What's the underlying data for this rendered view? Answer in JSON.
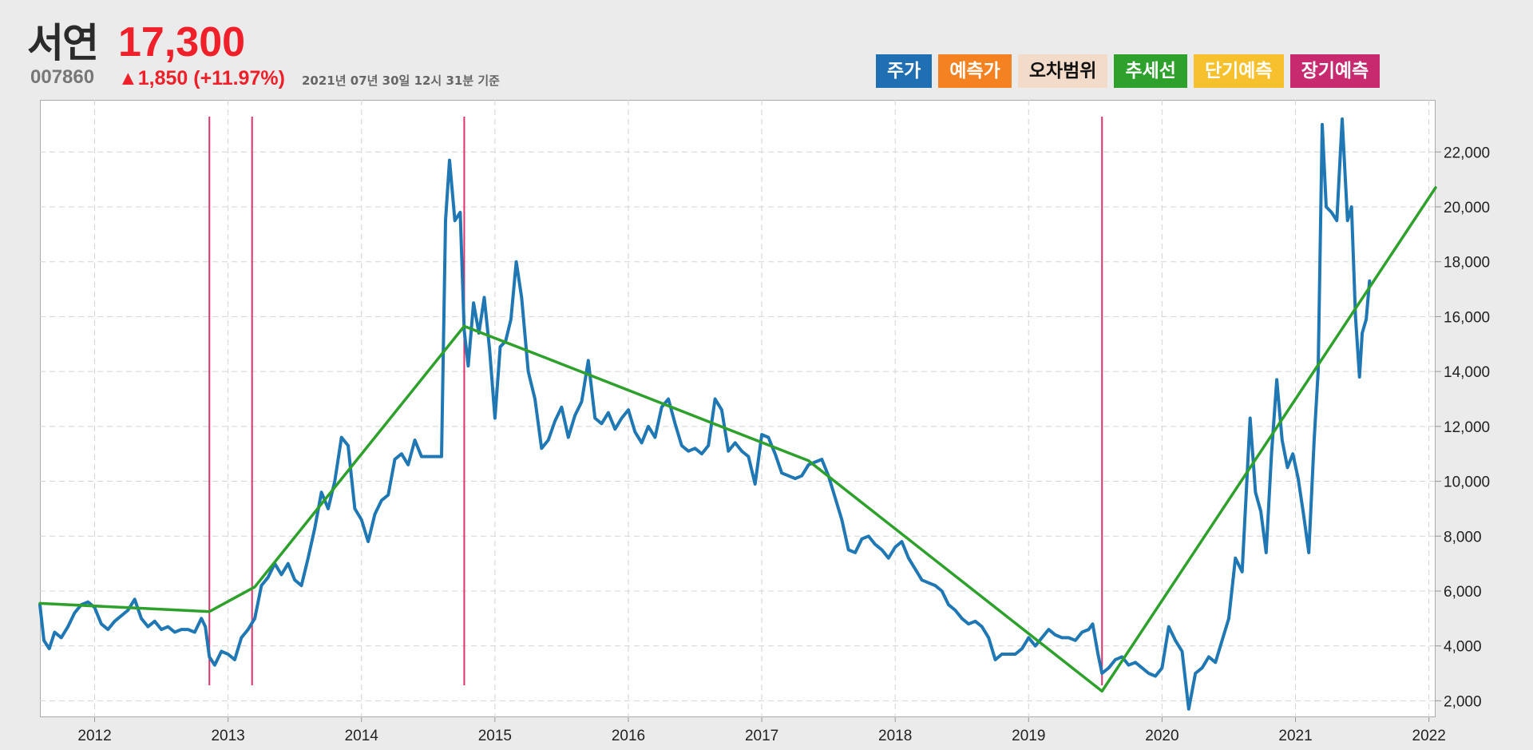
{
  "header": {
    "name": "서연",
    "price": "17,300",
    "code": "007860",
    "change": "▲1,850 (+11.97%)",
    "timestamp": "2021년 07년 30일 12시 31분 기준"
  },
  "legend": [
    {
      "label": "주가",
      "color": "#1f6fb2",
      "text_color": "#ffffff"
    },
    {
      "label": "예측가",
      "color": "#f58220",
      "text_color": "#ffffff"
    },
    {
      "label": "오차범위",
      "color": "#f2dcc9",
      "text_color": "#111111"
    },
    {
      "label": "추세선",
      "color": "#2ea02c",
      "text_color": "#ffffff"
    },
    {
      "label": "단기예측",
      "color": "#f6c12c",
      "text_color": "#ffffff"
    },
    {
      "label": "장기예측",
      "color": "#c72a6f",
      "text_color": "#ffffff"
    }
  ],
  "chart_data": {
    "type": "line",
    "x_axis": {
      "range": [
        2011.59,
        2022.05
      ],
      "ticks": [
        "2012",
        "2013",
        "2014",
        "2015",
        "2016",
        "2017",
        "2018",
        "2019",
        "2020",
        "2021",
        "2022"
      ],
      "tick_values": [
        2012,
        2013,
        2014,
        2015,
        2016,
        2017,
        2018,
        2019,
        2020,
        2021,
        2022
      ]
    },
    "y_axis": {
      "range": [
        1400,
        23900
      ],
      "position": "right",
      "ticks": [
        "2,000",
        "4,000",
        "6,000",
        "8,000",
        "10,000",
        "12,000",
        "14,000",
        "16,000",
        "18,000",
        "20,000",
        "22,000"
      ],
      "tick_values": [
        2000,
        4000,
        6000,
        8000,
        10000,
        12000,
        14000,
        16000,
        18000,
        20000,
        22000
      ]
    },
    "grid": true,
    "series": [
      {
        "color": "#1f77b4",
        "points": [
          [
            2011.59,
            5500
          ],
          [
            2011.62,
            4200
          ],
          [
            2011.66,
            3900
          ],
          [
            2011.7,
            4500
          ],
          [
            2011.75,
            4300
          ],
          [
            2011.8,
            4700
          ],
          [
            2011.85,
            5200
          ],
          [
            2011.9,
            5500
          ],
          [
            2011.95,
            5600
          ],
          [
            2012.0,
            5400
          ],
          [
            2012.05,
            4800
          ],
          [
            2012.1,
            4600
          ],
          [
            2012.15,
            4900
          ],
          [
            2012.2,
            5100
          ],
          [
            2012.25,
            5300
          ],
          [
            2012.3,
            5700
          ],
          [
            2012.35,
            5000
          ],
          [
            2012.4,
            4700
          ],
          [
            2012.45,
            4900
          ],
          [
            2012.5,
            4600
          ],
          [
            2012.55,
            4700
          ],
          [
            2012.6,
            4500
          ],
          [
            2012.65,
            4600
          ],
          [
            2012.7,
            4600
          ],
          [
            2012.75,
            4500
          ],
          [
            2012.8,
            5000
          ],
          [
            2012.83,
            4700
          ],
          [
            2012.86,
            3600
          ],
          [
            2012.9,
            3300
          ],
          [
            2012.95,
            3800
          ],
          [
            2013.0,
            3700
          ],
          [
            2013.05,
            3500
          ],
          [
            2013.1,
            4300
          ],
          [
            2013.15,
            4600
          ],
          [
            2013.2,
            5000
          ],
          [
            2013.25,
            6200
          ],
          [
            2013.3,
            6500
          ],
          [
            2013.35,
            7000
          ],
          [
            2013.4,
            6600
          ],
          [
            2013.45,
            7000
          ],
          [
            2013.5,
            6400
          ],
          [
            2013.55,
            6200
          ],
          [
            2013.6,
            7200
          ],
          [
            2013.65,
            8300
          ],
          [
            2013.7,
            9600
          ],
          [
            2013.75,
            9000
          ],
          [
            2013.8,
            10000
          ],
          [
            2013.85,
            11600
          ],
          [
            2013.9,
            11300
          ],
          [
            2013.95,
            9000
          ],
          [
            2014.0,
            8600
          ],
          [
            2014.05,
            7800
          ],
          [
            2014.1,
            8800
          ],
          [
            2014.15,
            9300
          ],
          [
            2014.2,
            9500
          ],
          [
            2014.25,
            10800
          ],
          [
            2014.3,
            11000
          ],
          [
            2014.35,
            10600
          ],
          [
            2014.4,
            11500
          ],
          [
            2014.45,
            10900
          ],
          [
            2014.5,
            10900
          ],
          [
            2014.55,
            10900
          ],
          [
            2014.6,
            10900
          ],
          [
            2014.63,
            19500
          ],
          [
            2014.66,
            21700
          ],
          [
            2014.7,
            19500
          ],
          [
            2014.74,
            19800
          ],
          [
            2014.77,
            15500
          ],
          [
            2014.8,
            14200
          ],
          [
            2014.84,
            16500
          ],
          [
            2014.88,
            15400
          ],
          [
            2014.92,
            16700
          ],
          [
            2014.96,
            14800
          ],
          [
            2015.0,
            12300
          ],
          [
            2015.04,
            14900
          ],
          [
            2015.08,
            15100
          ],
          [
            2015.12,
            15900
          ],
          [
            2015.16,
            18000
          ],
          [
            2015.2,
            16700
          ],
          [
            2015.25,
            14000
          ],
          [
            2015.3,
            13000
          ],
          [
            2015.35,
            11200
          ],
          [
            2015.4,
            11500
          ],
          [
            2015.45,
            12200
          ],
          [
            2015.5,
            12700
          ],
          [
            2015.55,
            11600
          ],
          [
            2015.6,
            12400
          ],
          [
            2015.65,
            12900
          ],
          [
            2015.7,
            14400
          ],
          [
            2015.75,
            12300
          ],
          [
            2015.8,
            12100
          ],
          [
            2015.85,
            12500
          ],
          [
            2015.9,
            11900
          ],
          [
            2015.95,
            12300
          ],
          [
            2016.0,
            12600
          ],
          [
            2016.05,
            11800
          ],
          [
            2016.1,
            11400
          ],
          [
            2016.15,
            12000
          ],
          [
            2016.2,
            11600
          ],
          [
            2016.25,
            12700
          ],
          [
            2016.3,
            13000
          ],
          [
            2016.35,
            12100
          ],
          [
            2016.4,
            11300
          ],
          [
            2016.45,
            11100
          ],
          [
            2016.5,
            11200
          ],
          [
            2016.55,
            11000
          ],
          [
            2016.6,
            11300
          ],
          [
            2016.65,
            13000
          ],
          [
            2016.7,
            12600
          ],
          [
            2016.75,
            11100
          ],
          [
            2016.8,
            11400
          ],
          [
            2016.85,
            11100
          ],
          [
            2016.9,
            10900
          ],
          [
            2016.95,
            9900
          ],
          [
            2017.0,
            11700
          ],
          [
            2017.05,
            11600
          ],
          [
            2017.1,
            11000
          ],
          [
            2017.15,
            10300
          ],
          [
            2017.2,
            10200
          ],
          [
            2017.25,
            10100
          ],
          [
            2017.3,
            10200
          ],
          [
            2017.35,
            10600
          ],
          [
            2017.4,
            10700
          ],
          [
            2017.45,
            10800
          ],
          [
            2017.5,
            10200
          ],
          [
            2017.55,
            9400
          ],
          [
            2017.6,
            8600
          ],
          [
            2017.65,
            7500
          ],
          [
            2017.7,
            7400
          ],
          [
            2017.75,
            7900
          ],
          [
            2017.8,
            8000
          ],
          [
            2017.85,
            7700
          ],
          [
            2017.9,
            7500
          ],
          [
            2017.95,
            7200
          ],
          [
            2018.0,
            7600
          ],
          [
            2018.05,
            7800
          ],
          [
            2018.1,
            7200
          ],
          [
            2018.15,
            6800
          ],
          [
            2018.2,
            6400
          ],
          [
            2018.25,
            6300
          ],
          [
            2018.3,
            6200
          ],
          [
            2018.35,
            6000
          ],
          [
            2018.4,
            5500
          ],
          [
            2018.45,
            5300
          ],
          [
            2018.5,
            5000
          ],
          [
            2018.55,
            4800
          ],
          [
            2018.6,
            4900
          ],
          [
            2018.65,
            4700
          ],
          [
            2018.7,
            4300
          ],
          [
            2018.75,
            3500
          ],
          [
            2018.8,
            3700
          ],
          [
            2018.85,
            3700
          ],
          [
            2018.9,
            3700
          ],
          [
            2018.95,
            3900
          ],
          [
            2019.0,
            4300
          ],
          [
            2019.05,
            4000
          ],
          [
            2019.1,
            4300
          ],
          [
            2019.15,
            4600
          ],
          [
            2019.2,
            4400
          ],
          [
            2019.25,
            4300
          ],
          [
            2019.3,
            4300
          ],
          [
            2019.35,
            4200
          ],
          [
            2019.4,
            4500
          ],
          [
            2019.45,
            4600
          ],
          [
            2019.48,
            4800
          ],
          [
            2019.52,
            3700
          ],
          [
            2019.55,
            3000
          ],
          [
            2019.6,
            3200
          ],
          [
            2019.65,
            3500
          ],
          [
            2019.7,
            3600
          ],
          [
            2019.75,
            3300
          ],
          [
            2019.8,
            3400
          ],
          [
            2019.85,
            3200
          ],
          [
            2019.9,
            3000
          ],
          [
            2019.95,
            2900
          ],
          [
            2020.0,
            3200
          ],
          [
            2020.05,
            4700
          ],
          [
            2020.1,
            4200
          ],
          [
            2020.15,
            3800
          ],
          [
            2020.2,
            1700
          ],
          [
            2020.25,
            3000
          ],
          [
            2020.3,
            3200
          ],
          [
            2020.35,
            3600
          ],
          [
            2020.4,
            3400
          ],
          [
            2020.45,
            4200
          ],
          [
            2020.5,
            5000
          ],
          [
            2020.55,
            7200
          ],
          [
            2020.6,
            6700
          ],
          [
            2020.63,
            9500
          ],
          [
            2020.66,
            12300
          ],
          [
            2020.7,
            9600
          ],
          [
            2020.74,
            8900
          ],
          [
            2020.78,
            7400
          ],
          [
            2020.82,
            11000
          ],
          [
            2020.86,
            13700
          ],
          [
            2020.9,
            11500
          ],
          [
            2020.94,
            10500
          ],
          [
            2020.98,
            11000
          ],
          [
            2021.02,
            10100
          ],
          [
            2021.06,
            8800
          ],
          [
            2021.1,
            7400
          ],
          [
            2021.14,
            11500
          ],
          [
            2021.17,
            14000
          ],
          [
            2021.2,
            23000
          ],
          [
            2021.23,
            20000
          ],
          [
            2021.27,
            19800
          ],
          [
            2021.31,
            19500
          ],
          [
            2021.35,
            23200
          ],
          [
            2021.39,
            19500
          ],
          [
            2021.42,
            20000
          ],
          [
            2021.45,
            16000
          ],
          [
            2021.48,
            13800
          ],
          [
            2021.5,
            15400
          ],
          [
            2021.53,
            15900
          ],
          [
            2021.555,
            17300
          ]
        ]
      },
      {
        "color": "#2ea02c",
        "points": [
          [
            2011.59,
            5550
          ],
          [
            2012.86,
            5250
          ],
          [
            2013.2,
            6150
          ],
          [
            2014.77,
            15650
          ],
          [
            2015.3,
            14650
          ],
          [
            2017.35,
            10750
          ],
          [
            2019.55,
            2350
          ],
          [
            2022.05,
            20700
          ]
        ]
      }
    ],
    "vlines": {
      "color": "#e0336c",
      "x": [
        2012.86,
        2013.18,
        2014.77,
        2019.55
      ]
    }
  }
}
